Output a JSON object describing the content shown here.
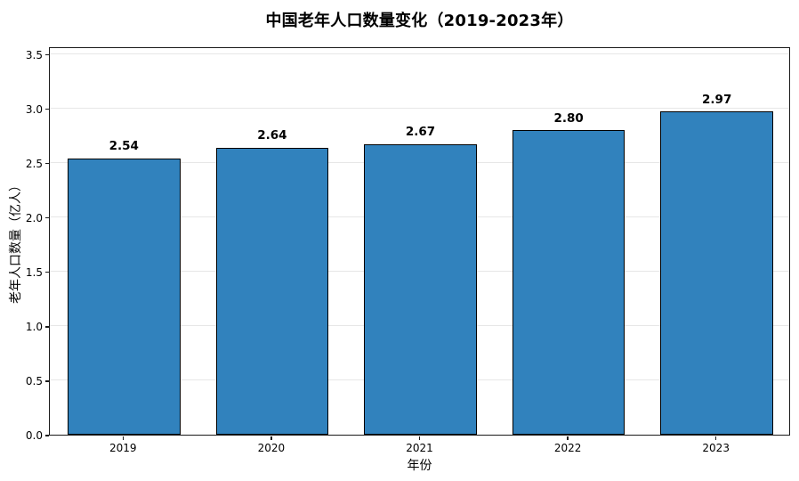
{
  "chart_data": {
    "type": "bar",
    "title": "中国老年人口数量变化（2019-2023年）",
    "xlabel": "年份",
    "ylabel": "老年人口数量（亿人）",
    "categories": [
      "2019",
      "2020",
      "2021",
      "2022",
      "2023"
    ],
    "values": [
      2.54,
      2.64,
      2.67,
      2.8,
      2.97
    ],
    "bar_labels": [
      "2.54",
      "2.64",
      "2.67",
      "2.80",
      "2.97"
    ],
    "yticks": [
      0.0,
      0.5,
      1.0,
      1.5,
      2.0,
      2.5,
      3.0,
      3.5
    ],
    "ytick_labels": [
      "0.0",
      "0.5",
      "1.0",
      "1.5",
      "2.0",
      "2.5",
      "3.0",
      "3.5"
    ],
    "ylim": [
      0,
      3.57
    ],
    "grid": "horizontal-only",
    "legend": "none",
    "bar_width_fraction": 0.76,
    "colors": {
      "bar_fill": "#3182bd",
      "bar_edge": "#000000",
      "gridline": "#e7e7e7",
      "spine": "#1a1a1a",
      "text": "#000000",
      "background": "#ffffff"
    }
  }
}
